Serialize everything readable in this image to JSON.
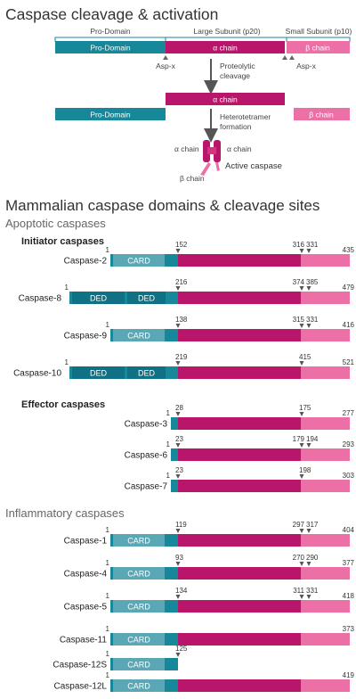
{
  "colors": {
    "teal": "#17879a",
    "teal_dark": "#0f7183",
    "teal_light": "#5aa7b5",
    "magenta": "#b8156b",
    "pink": "#ec6fa6",
    "arrow": "#555555"
  },
  "top": {
    "title": "Caspase cleavage & activation",
    "bracket_pro": "Pro-Domain",
    "bracket_large": "Large Subunit (p20)",
    "bracket_small": "Small Subunit (p10)",
    "bar_pro": "Pro-Domain",
    "bar_alpha": "α chain",
    "bar_beta": "β chain",
    "asp_left": "Asp-x",
    "asp_right": "Asp-x",
    "step1": [
      "Proteolytic",
      "cleavage"
    ],
    "alpha_alone": "α chain",
    "pro_alone": "Pro-Domain",
    "beta_alone": "β chain",
    "step2": [
      "Heterotetramer",
      "formation"
    ],
    "alpha_left": "α chain",
    "alpha_right": "α chain",
    "beta_bottom": "β chain",
    "active": "Active caspase"
  },
  "mammalian": {
    "title": "Mammalian caspase domains & cleavage sites",
    "apoptotic": "Apoptotic caspases",
    "initiator": "Initiator caspases",
    "effector": "Effector caspases",
    "inflammatory": "Inflammatory caspases"
  },
  "caspases": [
    {
      "name": "Caspase-2",
      "dom": "CARD",
      "labels": [
        "1",
        "152",
        "316",
        "331",
        "435"
      ]
    },
    {
      "name": "Caspase-8",
      "dom": "DED",
      "labels": [
        "1",
        "216",
        "374",
        "385",
        "479"
      ]
    },
    {
      "name": "Caspase-9",
      "dom": "CARD",
      "labels": [
        "1",
        "138",
        "315",
        "331",
        "416"
      ]
    },
    {
      "name": "Caspase-10",
      "dom": "DED",
      "labels": [
        "1",
        "219",
        "415",
        "521"
      ]
    },
    {
      "name": "Caspase-3",
      "labels": [
        "1",
        "28",
        "175",
        "277"
      ]
    },
    {
      "name": "Caspase-6",
      "labels": [
        "1",
        "23",
        "179",
        "194",
        "293"
      ]
    },
    {
      "name": "Caspase-7",
      "labels": [
        "1",
        "23",
        "198",
        "303"
      ]
    },
    {
      "name": "Caspase-1",
      "dom": "CARD",
      "labels": [
        "1",
        "119",
        "297",
        "317",
        "404"
      ]
    },
    {
      "name": "Caspase-4",
      "dom": "CARD",
      "labels": [
        "1",
        "93",
        "270",
        "290",
        "377"
      ]
    },
    {
      "name": "Caspase-5",
      "dom": "CARD",
      "labels": [
        "1",
        "134",
        "311",
        "331",
        "418"
      ]
    },
    {
      "name": "Caspase-11",
      "dom": "CARD",
      "labels": [
        "1",
        "373"
      ]
    },
    {
      "name": "Caspase-12S",
      "dom": "CARD",
      "labels": [
        "1",
        "125"
      ]
    },
    {
      "name": "Caspase-12L",
      "dom": "CARD",
      "labels": [
        "1",
        "419"
      ]
    }
  ]
}
